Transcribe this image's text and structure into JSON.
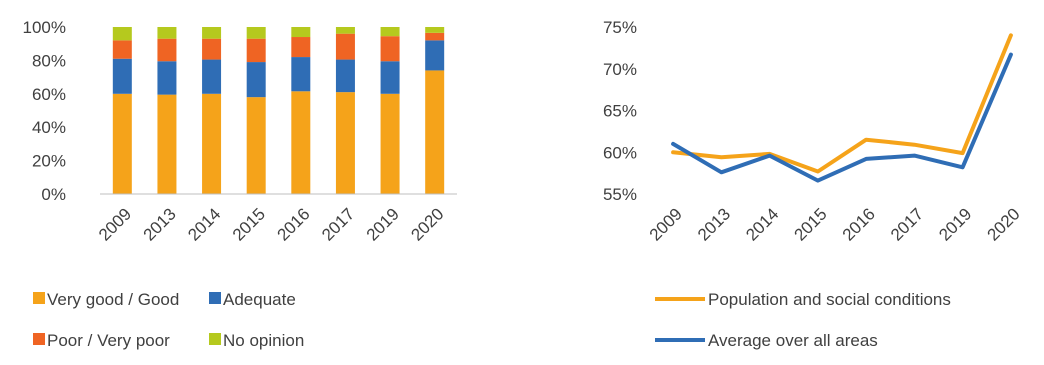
{
  "chart_data": [
    {
      "type": "bar",
      "stacked": true,
      "categories": [
        "2009",
        "2013",
        "2014",
        "2015",
        "2016",
        "2017",
        "2019",
        "2020"
      ],
      "y_ticks": [
        "0%",
        "20%",
        "40%",
        "60%",
        "80%",
        "100%"
      ],
      "ylim": [
        0,
        100
      ],
      "grid": false,
      "legend_position": "bottom",
      "series": [
        {
          "name": "Very good / Good",
          "color": "#F5A31A",
          "values": [
            60,
            59.5,
            60,
            58,
            61.5,
            61,
            60,
            74
          ]
        },
        {
          "name": "Adequate",
          "color": "#2F6DB5",
          "values": [
            21,
            20,
            20.5,
            21,
            20.5,
            19.5,
            19.5,
            18
          ]
        },
        {
          "name": "Poor / Very poor",
          "color": "#EF6423",
          "values": [
            11,
            13.5,
            12.5,
            14,
            12,
            15.5,
            15,
            4.5
          ]
        },
        {
          "name": "No opinion",
          "color": "#B5C91E",
          "values": [
            8,
            7,
            7,
            7,
            6,
            4,
            5.5,
            3.5
          ]
        }
      ]
    },
    {
      "type": "line",
      "categories": [
        "2009",
        "2013",
        "2014",
        "2015",
        "2016",
        "2017",
        "2019",
        "2020"
      ],
      "y_ticks": [
        "55%",
        "60%",
        "65%",
        "70%",
        "75%"
      ],
      "ylim": [
        55,
        75
      ],
      "grid": false,
      "legend_position": "right",
      "series": [
        {
          "name": "Population and social conditions",
          "color": "#F5A31A",
          "values": [
            60,
            59.4,
            59.8,
            57.7,
            61.5,
            60.9,
            59.9,
            74
          ]
        },
        {
          "name": "Average over all areas",
          "color": "#2F6DB5",
          "values": [
            61,
            57.6,
            59.6,
            56.6,
            59.2,
            59.6,
            58.2,
            71.7
          ]
        }
      ]
    }
  ]
}
